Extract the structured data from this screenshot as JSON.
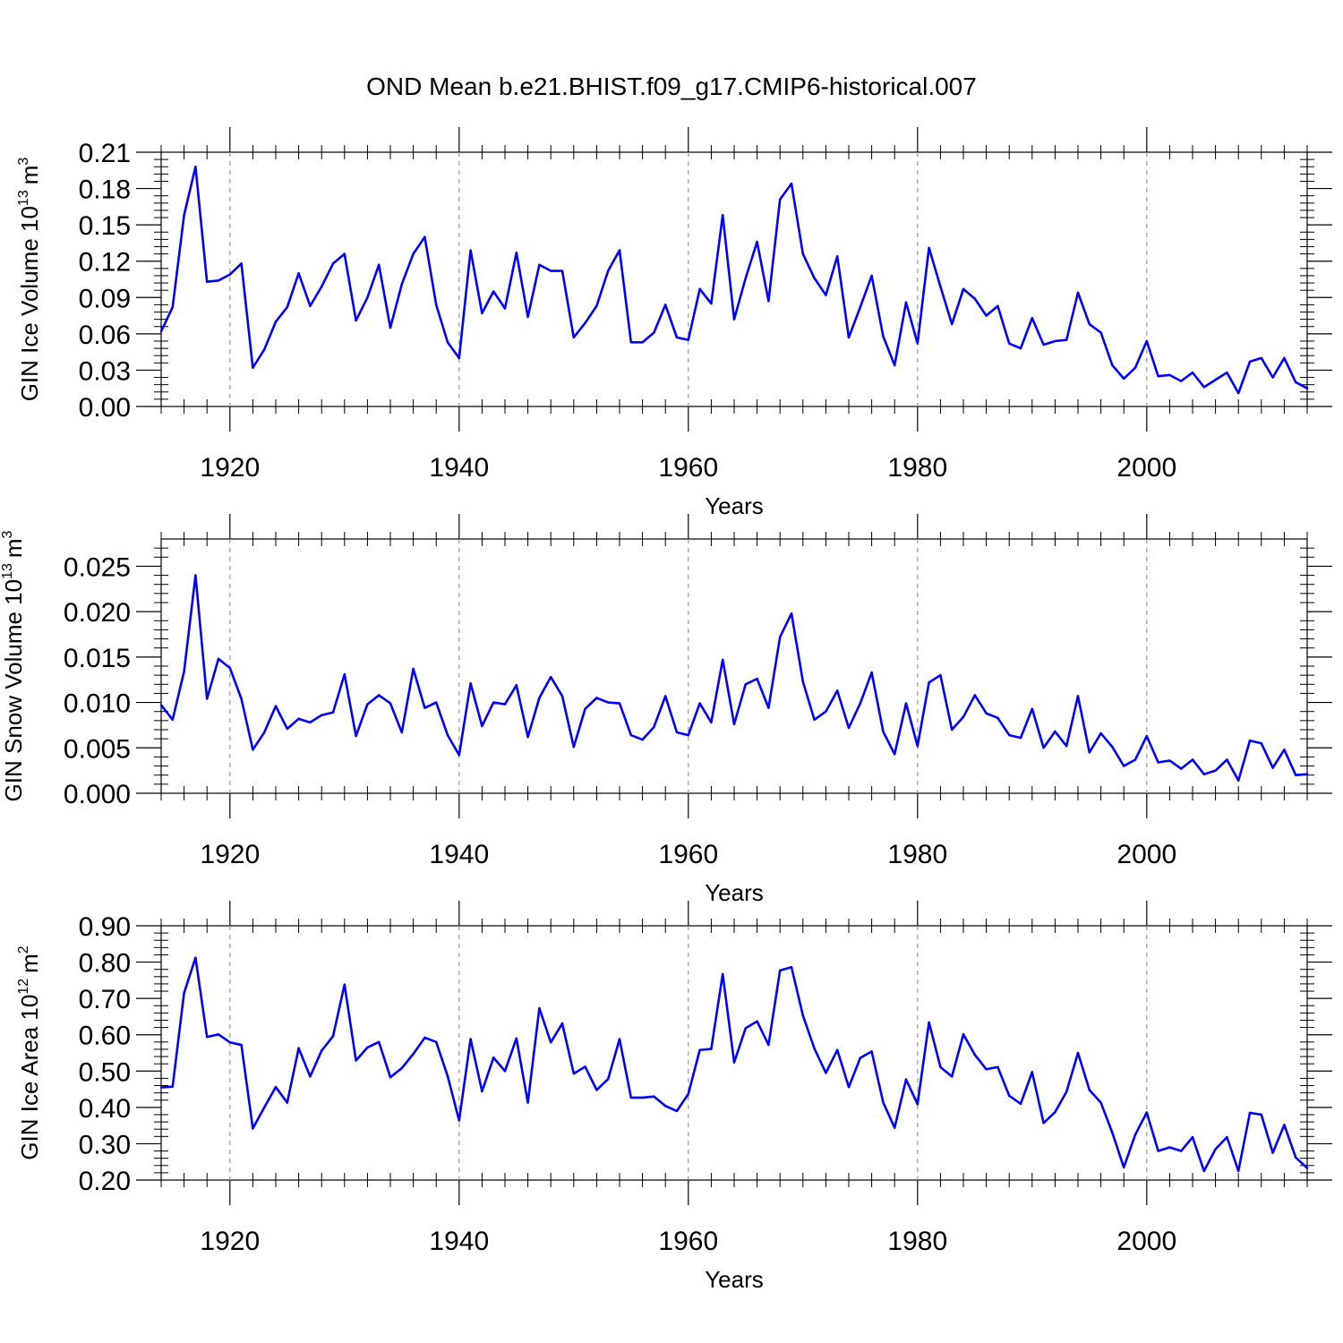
{
  "figure_title": "OND Mean b.e21.BHIST.f09_g17.CMIP6-historical.007",
  "colors": {
    "line": "#0000ff",
    "axis": "#000000",
    "grid": "#999999",
    "background": "#ffffff"
  },
  "chart_data": [
    {
      "type": "line",
      "title": "",
      "xlabel": "Years",
      "ylabel": "GIN Ice Volume 10",
      "ylabel_exponent": "13",
      "ylabel_unit": "m",
      "ylabel_unit_exponent": "3",
      "xlim": [
        1914,
        2014
      ],
      "ylim": [
        0,
        0.21
      ],
      "xticks": [
        1920,
        1940,
        1960,
        1980,
        2000
      ],
      "xtick_labels": [
        "1920",
        "1940",
        "1960",
        "1980",
        "2000"
      ],
      "yticks": [
        0,
        0.03,
        0.06,
        0.09,
        0.12,
        0.15,
        0.18,
        0.21
      ],
      "ytick_labels": [
        "0.00",
        "0.03",
        "0.06",
        "0.09",
        "0.12",
        "0.15",
        "0.18",
        "0.21"
      ],
      "grid": "vertical dashed at major x ticks",
      "series": [
        {
          "name": "GIN Ice Volume",
          "x": [
            1914,
            1915,
            1916,
            1917,
            1918,
            1919,
            1920,
            1921,
            1922,
            1923,
            1924,
            1925,
            1926,
            1927,
            1928,
            1929,
            1930,
            1931,
            1932,
            1933,
            1934,
            1935,
            1936,
            1937,
            1938,
            1939,
            1940,
            1941,
            1942,
            1943,
            1944,
            1945,
            1946,
            1947,
            1948,
            1949,
            1950,
            1951,
            1952,
            1953,
            1954,
            1955,
            1956,
            1957,
            1958,
            1959,
            1960,
            1961,
            1962,
            1963,
            1964,
            1965,
            1966,
            1967,
            1968,
            1969,
            1970,
            1971,
            1972,
            1973,
            1974,
            1975,
            1976,
            1977,
            1978,
            1979,
            1980,
            1981,
            1982,
            1983,
            1984,
            1985,
            1986,
            1987,
            1988,
            1989,
            1990,
            1991,
            1992,
            1993,
            1994,
            1995,
            1996,
            1997,
            1998,
            1999,
            2000,
            2001,
            2002,
            2003,
            2004,
            2005,
            2006,
            2007,
            2008,
            2009,
            2010,
            2011,
            2012,
            2013,
            2014
          ],
          "values": [
            0.062,
            0.082,
            0.158,
            0.198,
            0.103,
            0.104,
            0.109,
            0.118,
            0.032,
            0.047,
            0.07,
            0.082,
            0.11,
            0.083,
            0.099,
            0.118,
            0.126,
            0.071,
            0.09,
            0.117,
            0.065,
            0.101,
            0.126,
            0.14,
            0.084,
            0.053,
            0.04,
            0.129,
            0.077,
            0.095,
            0.081,
            0.127,
            0.074,
            0.117,
            0.112,
            0.112,
            0.057,
            0.069,
            0.083,
            0.112,
            0.129,
            0.053,
            0.053,
            0.061,
            0.084,
            0.057,
            0.055,
            0.097,
            0.085,
            0.158,
            0.072,
            0.106,
            0.136,
            0.087,
            0.171,
            0.184,
            0.126,
            0.106,
            0.092,
            0.124,
            0.057,
            0.082,
            0.108,
            0.058,
            0.034,
            0.086,
            0.052,
            0.131,
            0.099,
            0.068,
            0.097,
            0.089,
            0.075,
            0.083,
            0.052,
            0.048,
            0.073,
            0.051,
            0.054,
            0.055,
            0.094,
            0.068,
            0.061,
            0.034,
            0.023,
            0.032,
            0.054,
            0.025,
            0.026,
            0.021,
            0.028,
            0.016,
            0.022,
            0.028,
            0.011,
            0.037,
            0.04,
            0.024,
            0.04,
            0.02,
            0.015
          ]
        }
      ]
    },
    {
      "type": "line",
      "title": "",
      "xlabel": "Years",
      "ylabel": "GIN Snow Volume 10",
      "ylabel_exponent": "13",
      "ylabel_unit": "m",
      "ylabel_unit_exponent": "3",
      "xlim": [
        1914,
        2014
      ],
      "ylim": [
        0,
        0.028
      ],
      "xticks": [
        1920,
        1940,
        1960,
        1980,
        2000
      ],
      "xtick_labels": [
        "1920",
        "1940",
        "1960",
        "1980",
        "2000"
      ],
      "yticks": [
        0,
        0.005,
        0.01,
        0.015,
        0.02,
        0.025
      ],
      "ytick_labels": [
        "0.000",
        "0.005",
        "0.010",
        "0.015",
        "0.020",
        "0.025"
      ],
      "grid": "vertical dashed at major x ticks",
      "series": [
        {
          "name": "GIN Snow Volume",
          "x": [
            1914,
            1915,
            1916,
            1917,
            1918,
            1919,
            1920,
            1921,
            1922,
            1923,
            1924,
            1925,
            1926,
            1927,
            1928,
            1929,
            1930,
            1931,
            1932,
            1933,
            1934,
            1935,
            1936,
            1937,
            1938,
            1939,
            1940,
            1941,
            1942,
            1943,
            1944,
            1945,
            1946,
            1947,
            1948,
            1949,
            1950,
            1951,
            1952,
            1953,
            1954,
            1955,
            1956,
            1957,
            1958,
            1959,
            1960,
            1961,
            1962,
            1963,
            1964,
            1965,
            1966,
            1967,
            1968,
            1969,
            1970,
            1971,
            1972,
            1973,
            1974,
            1975,
            1976,
            1977,
            1978,
            1979,
            1980,
            1981,
            1982,
            1983,
            1984,
            1985,
            1986,
            1987,
            1988,
            1989,
            1990,
            1991,
            1992,
            1993,
            1994,
            1995,
            1996,
            1997,
            1998,
            1999,
            2000,
            2001,
            2002,
            2003,
            2004,
            2005,
            2006,
            2007,
            2008,
            2009,
            2010,
            2011,
            2012,
            2013,
            2014
          ],
          "values": [
            0.0097,
            0.0081,
            0.0134,
            0.024,
            0.0104,
            0.0148,
            0.0138,
            0.0104,
            0.0048,
            0.0067,
            0.0096,
            0.0071,
            0.0082,
            0.0078,
            0.0086,
            0.0089,
            0.0131,
            0.0063,
            0.0098,
            0.0108,
            0.0099,
            0.0067,
            0.0137,
            0.0094,
            0.01,
            0.0064,
            0.0042,
            0.0121,
            0.0074,
            0.01,
            0.0098,
            0.0119,
            0.0062,
            0.0105,
            0.0128,
            0.0107,
            0.0051,
            0.0093,
            0.0105,
            0.01,
            0.0099,
            0.0064,
            0.0059,
            0.0073,
            0.0107,
            0.0067,
            0.0064,
            0.0099,
            0.0078,
            0.0147,
            0.0076,
            0.012,
            0.0126,
            0.0094,
            0.0172,
            0.0198,
            0.0123,
            0.0081,
            0.009,
            0.0113,
            0.0072,
            0.0099,
            0.0133,
            0.0068,
            0.0043,
            0.0099,
            0.0052,
            0.0122,
            0.013,
            0.007,
            0.0084,
            0.0108,
            0.0088,
            0.0083,
            0.0064,
            0.0061,
            0.0093,
            0.005,
            0.0068,
            0.0052,
            0.0107,
            0.0045,
            0.0066,
            0.0051,
            0.003,
            0.0037,
            0.0063,
            0.0034,
            0.0036,
            0.0027,
            0.0037,
            0.0021,
            0.0025,
            0.0037,
            0.0014,
            0.0058,
            0.0055,
            0.0028,
            0.0048,
            0.002,
            0.0021
          ]
        }
      ]
    },
    {
      "type": "line",
      "title": "",
      "xlabel": "Years",
      "ylabel": "GIN Ice Area 10",
      "ylabel_exponent": "12",
      "ylabel_unit": "m",
      "ylabel_unit_exponent": "2",
      "xlim": [
        1914,
        2014
      ],
      "ylim": [
        0.2,
        0.9
      ],
      "xticks": [
        1920,
        1940,
        1960,
        1980,
        2000
      ],
      "xtick_labels": [
        "1920",
        "1940",
        "1960",
        "1980",
        "2000"
      ],
      "yticks": [
        0.2,
        0.3,
        0.4,
        0.5,
        0.6,
        0.7,
        0.8,
        0.9
      ],
      "ytick_labels": [
        "0.20",
        "0.30",
        "0.40",
        "0.50",
        "0.60",
        "0.70",
        "0.80",
        "0.90"
      ],
      "grid": "vertical dashed at major x ticks",
      "series": [
        {
          "name": "GIN Ice Area",
          "x": [
            1914,
            1915,
            1916,
            1917,
            1918,
            1919,
            1920,
            1921,
            1922,
            1923,
            1924,
            1925,
            1926,
            1927,
            1928,
            1929,
            1930,
            1931,
            1932,
            1933,
            1934,
            1935,
            1936,
            1937,
            1938,
            1939,
            1940,
            1941,
            1942,
            1943,
            1944,
            1945,
            1946,
            1947,
            1948,
            1949,
            1950,
            1951,
            1952,
            1953,
            1954,
            1955,
            1956,
            1957,
            1958,
            1959,
            1960,
            1961,
            1962,
            1963,
            1964,
            1965,
            1966,
            1967,
            1968,
            1969,
            1970,
            1971,
            1972,
            1973,
            1974,
            1975,
            1976,
            1977,
            1978,
            1979,
            1980,
            1981,
            1982,
            1983,
            1984,
            1985,
            1986,
            1987,
            1988,
            1989,
            1990,
            1991,
            1992,
            1993,
            1994,
            1995,
            1996,
            1997,
            1998,
            1999,
            2000,
            2001,
            2002,
            2003,
            2004,
            2005,
            2006,
            2007,
            2008,
            2009,
            2010,
            2011,
            2012,
            2013,
            2014
          ],
          "values": [
            0.455,
            0.457,
            0.715,
            0.812,
            0.594,
            0.601,
            0.579,
            0.572,
            0.342,
            0.4,
            0.456,
            0.413,
            0.563,
            0.485,
            0.556,
            0.596,
            0.738,
            0.529,
            0.565,
            0.58,
            0.483,
            0.508,
            0.547,
            0.592,
            0.58,
            0.486,
            0.364,
            0.588,
            0.444,
            0.537,
            0.5,
            0.59,
            0.413,
            0.673,
            0.579,
            0.631,
            0.493,
            0.512,
            0.448,
            0.478,
            0.588,
            0.427,
            0.427,
            0.43,
            0.404,
            0.39,
            0.437,
            0.558,
            0.561,
            0.767,
            0.524,
            0.618,
            0.637,
            0.572,
            0.777,
            0.786,
            0.653,
            0.562,
            0.495,
            0.558,
            0.456,
            0.536,
            0.554,
            0.414,
            0.344,
            0.477,
            0.409,
            0.634,
            0.511,
            0.485,
            0.601,
            0.545,
            0.505,
            0.511,
            0.432,
            0.41,
            0.497,
            0.357,
            0.387,
            0.443,
            0.55,
            0.448,
            0.413,
            0.33,
            0.235,
            0.325,
            0.386,
            0.28,
            0.29,
            0.28,
            0.318,
            0.225,
            0.285,
            0.318,
            0.225,
            0.385,
            0.38,
            0.275,
            0.352,
            0.262,
            0.233
          ]
        }
      ]
    }
  ]
}
